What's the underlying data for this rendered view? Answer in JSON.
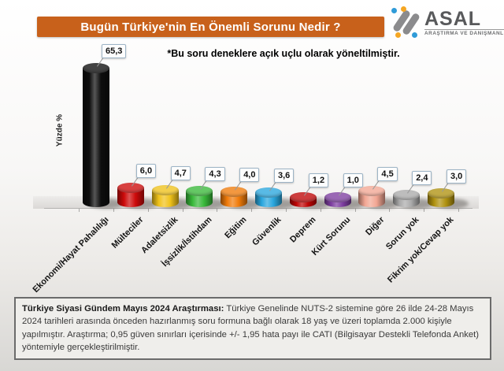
{
  "header": {
    "title": "Bugün Türkiye'nin En Önemli Sorunu Nedir ?"
  },
  "logo": {
    "name": "ASAL",
    "subtitle": "ARAŞTIRMA VE DANIŞMANLIK"
  },
  "note": {
    "text": "*Bu soru deneklere açık uçlu olarak yöneltilmiştir."
  },
  "chart_data": {
    "type": "bar",
    "style": "3d-cylinder",
    "title": "Bugün Türkiye'nin En Önemli Sorunu Nedir ?",
    "xlabel": "",
    "ylabel": "Yüzde %",
    "ylim": [
      0,
      70
    ],
    "grid": false,
    "legend": false,
    "categories": [
      "Ekonomi/Hayat Pahalılığı",
      "Mülteciler",
      "Adaletsizlik",
      "İşsizlik/İstihdam",
      "Eğitim",
      "Güvenlik",
      "Deprem",
      "Kürt Sorunu",
      "Diğer",
      "Sorun yok",
      "Fikrim yok/Cevap yok"
    ],
    "values": [
      65.3,
      6.0,
      4.7,
      4.3,
      4.0,
      3.6,
      1.2,
      1.0,
      4.5,
      2.4,
      3.0
    ],
    "value_labels": [
      "65,3",
      "6,0",
      "4,7",
      "4,3",
      "4,0",
      "3,6",
      "1,2",
      "1,0",
      "4,5",
      "2,4",
      "3,0"
    ],
    "colors": [
      "#0e0e0e",
      "#cd0a0a",
      "#f0c21a",
      "#39b93a",
      "#f07b0a",
      "#2aa7de",
      "#bf0606",
      "#7d3da0",
      "#f2a693",
      "#ababab",
      "#b09210"
    ]
  },
  "footer": {
    "title_bold": "Türkiye Siyasi Gündem Mayıs 2024 Araştırması:",
    "body": " Türkiye Genelinde NUTS-2 sistemine göre 26 ilde 24-28 Mayıs 2024 tarihleri arasında önceden hazırlanmış soru formuna bağlı olarak 18 yaş ve üzeri toplamda 2.000 kişiyle yapılmıştır. Araştırma; 0,95 güven sınırları içerisinde +/- 1,95 hata payı ile CATI (Bilgisayar Destekli Telefonda Anket) yöntemiyle gerçekleştirilmiştir."
  }
}
